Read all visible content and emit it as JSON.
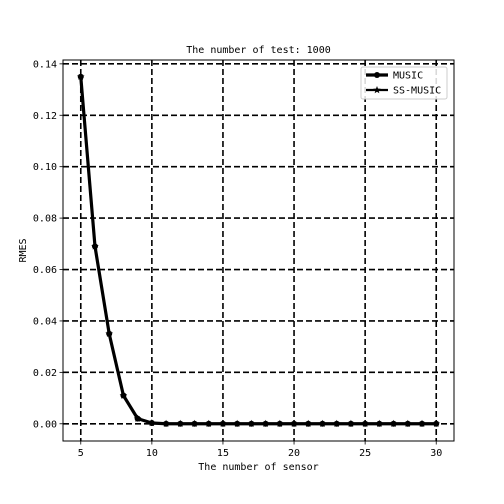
{
  "chart_data": {
    "type": "line",
    "title": "The number of test: 1000",
    "xlabel": "The number of sensor",
    "ylabel": "RMES",
    "xlim": [
      3.75,
      31.25
    ],
    "ylim": [
      -0.0067,
      0.1415
    ],
    "xticks": [
      5,
      10,
      15,
      20,
      25,
      30
    ],
    "yticks": [
      0.0,
      0.02,
      0.04,
      0.06,
      0.08,
      0.1,
      0.12,
      0.14
    ],
    "xtick_labels": [
      "5",
      "10",
      "15",
      "20",
      "25",
      "30"
    ],
    "ytick_labels": [
      "0.00",
      "0.02",
      "0.04",
      "0.06",
      "0.08",
      "0.10",
      "0.12",
      "0.14"
    ],
    "grid": true,
    "grid_style": "dashed",
    "legend_position": "top-right",
    "color": "#000000",
    "x": [
      5,
      6,
      7,
      8,
      9,
      10,
      11,
      12,
      13,
      14,
      15,
      16,
      17,
      18,
      19,
      20,
      21,
      22,
      23,
      24,
      25,
      26,
      27,
      28,
      29,
      30
    ],
    "series": [
      {
        "name": "MUSIC",
        "marker": "circle",
        "values": [
          0.135,
          0.069,
          0.035,
          0.011,
          0.002,
          0.0003,
          0,
          0,
          0,
          0,
          0,
          0,
          0,
          0,
          0,
          0,
          0,
          0,
          0,
          0,
          0,
          0,
          0,
          0,
          0,
          0
        ]
      },
      {
        "name": "SS-MUSIC",
        "marker": "star",
        "values": [
          0.135,
          0.069,
          0.035,
          0.011,
          0.002,
          0.0003,
          0,
          0,
          0,
          0,
          0,
          0,
          0,
          0,
          0,
          0,
          0,
          0,
          0,
          0,
          0,
          0,
          0,
          0,
          0,
          0
        ]
      }
    ]
  }
}
